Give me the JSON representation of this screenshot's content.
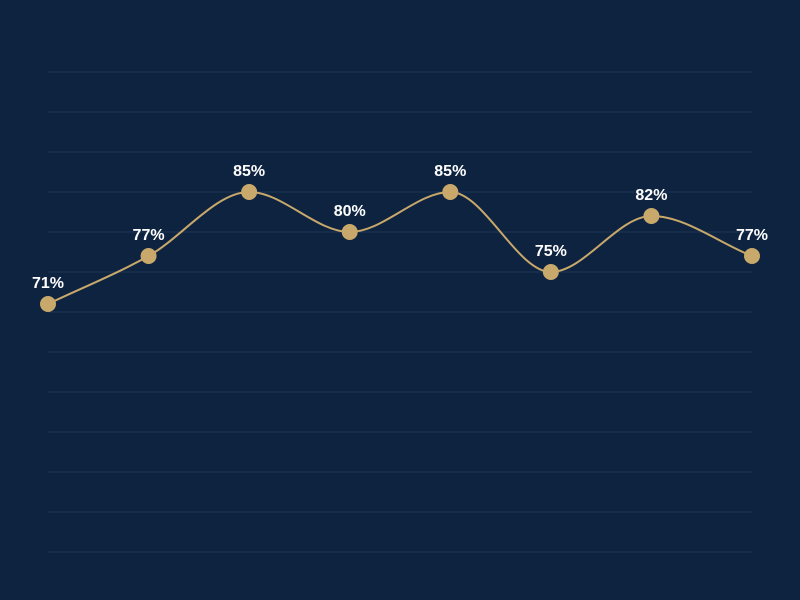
{
  "chart_data": {
    "type": "line",
    "title": "",
    "xlabel": "",
    "ylabel": "",
    "x": [
      1,
      2,
      3,
      4,
      5,
      6,
      7,
      8
    ],
    "ylim": [
      40,
      100
    ],
    "grid": true,
    "smooth": true,
    "series": [
      {
        "values": [
          71,
          77,
          85,
          80,
          85,
          75,
          82,
          77
        ],
        "labels": [
          "71%",
          "77%",
          "85%",
          "80%",
          "85%",
          "75%",
          "82%",
          "77%"
        ],
        "color": "#c8a86b"
      }
    ],
    "background_color": "#0e2340",
    "grid_color": "#1f3556",
    "label_color": "#ffffff"
  }
}
